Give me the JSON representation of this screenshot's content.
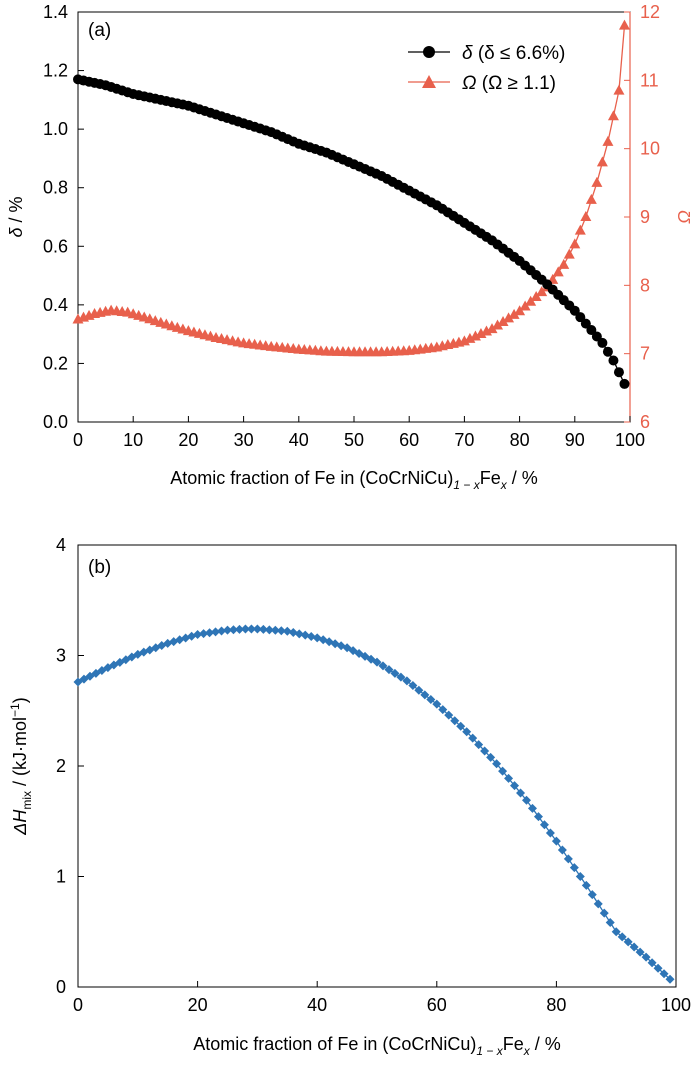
{
  "chart_data": [
    {
      "type": "line",
      "panel_label": "(a)",
      "xlabel": {
        "pre": "Atomic fraction of Fe in (CoCrNiCu)",
        "sub1": "1 − x",
        "mid": "Fe",
        "sub2": "x",
        "post": " / %"
      },
      "ylabel": {
        "sym": "δ",
        "post": " / %"
      },
      "y2label": "Ω",
      "xlim": [
        0,
        100
      ],
      "ylim": [
        0.0,
        1.4
      ],
      "y2lim": [
        6,
        12
      ],
      "x_ticks": [
        "0",
        "10",
        "20",
        "30",
        "40",
        "50",
        "60",
        "70",
        "80",
        "90",
        "100"
      ],
      "y_ticks": [
        "0.0",
        "0.2",
        "0.4",
        "0.6",
        "0.8",
        "1.0",
        "1.2",
        "1.4"
      ],
      "y2_ticks": [
        "6",
        "7",
        "8",
        "9",
        "10",
        "11",
        "12"
      ],
      "legend_position": "top-right",
      "colors": {
        "delta": "#000000",
        "omega": "#e8604c"
      },
      "series": [
        {
          "name": "δ (δ ≤ 6.6%)",
          "legend": {
            "sym": "δ",
            "paren": " (δ ≤ 6.6%)"
          },
          "axis": "left",
          "marker": "circle",
          "x": [
            0,
            5,
            10,
            15,
            20,
            25,
            30,
            35,
            40,
            45,
            50,
            55,
            60,
            65,
            70,
            75,
            80,
            85,
            90,
            95,
            97,
            98,
            99
          ],
          "y": [
            1.17,
            1.15,
            1.12,
            1.1,
            1.08,
            1.05,
            1.02,
            0.99,
            0.95,
            0.92,
            0.88,
            0.84,
            0.79,
            0.74,
            0.68,
            0.62,
            0.55,
            0.47,
            0.38,
            0.27,
            0.21,
            0.17,
            0.13
          ]
        },
        {
          "name": "Ω (Ω ≥ 1.1)",
          "legend": {
            "sym": "Ω",
            "paren": " (Ω ≥ 1.1)"
          },
          "axis": "right",
          "marker": "triangle",
          "x": [
            0,
            3,
            6,
            9,
            12,
            15,
            20,
            25,
            30,
            35,
            40,
            45,
            50,
            55,
            60,
            65,
            70,
            75,
            80,
            85,
            88,
            90,
            92,
            94,
            96,
            98,
            99
          ],
          "y": [
            7.5,
            7.58,
            7.63,
            7.6,
            7.53,
            7.45,
            7.33,
            7.23,
            7.15,
            7.1,
            7.06,
            7.03,
            7.02,
            7.02,
            7.04,
            7.09,
            7.18,
            7.36,
            7.62,
            7.97,
            8.3,
            8.6,
            9.0,
            9.5,
            10.1,
            10.85,
            11.8
          ]
        }
      ]
    },
    {
      "type": "line",
      "panel_label": "(b)",
      "xlabel": {
        "pre": "Atomic fraction of Fe in (CoCrNiCu)",
        "sub1": "1 − x",
        "mid": "Fe",
        "sub2": "x",
        "post": " / %"
      },
      "ylabel": {
        "pre": "ΔH",
        "sub": "mix",
        "post": " / (kJ·mol",
        "sup": "−1",
        "end": ")"
      },
      "xlim": [
        0,
        100
      ],
      "ylim": [
        0,
        4
      ],
      "x_ticks": [
        "0",
        "20",
        "40",
        "60",
        "80",
        "100"
      ],
      "y_ticks": [
        "0",
        "1",
        "2",
        "3",
        "4"
      ],
      "colors": {
        "series": "#2e75b6"
      },
      "series": [
        {
          "marker": "diamond",
          "x": [
            0,
            5,
            10,
            15,
            20,
            25,
            28,
            30,
            35,
            40,
            45,
            50,
            55,
            60,
            65,
            70,
            75,
            80,
            85,
            90,
            95,
            99
          ],
          "y": [
            2.76,
            2.89,
            3.01,
            3.11,
            3.19,
            3.23,
            3.24,
            3.24,
            3.22,
            3.16,
            3.07,
            2.94,
            2.77,
            2.56,
            2.31,
            2.02,
            1.69,
            1.32,
            0.92,
            0.5,
            0.27,
            0.07
          ]
        }
      ]
    }
  ]
}
